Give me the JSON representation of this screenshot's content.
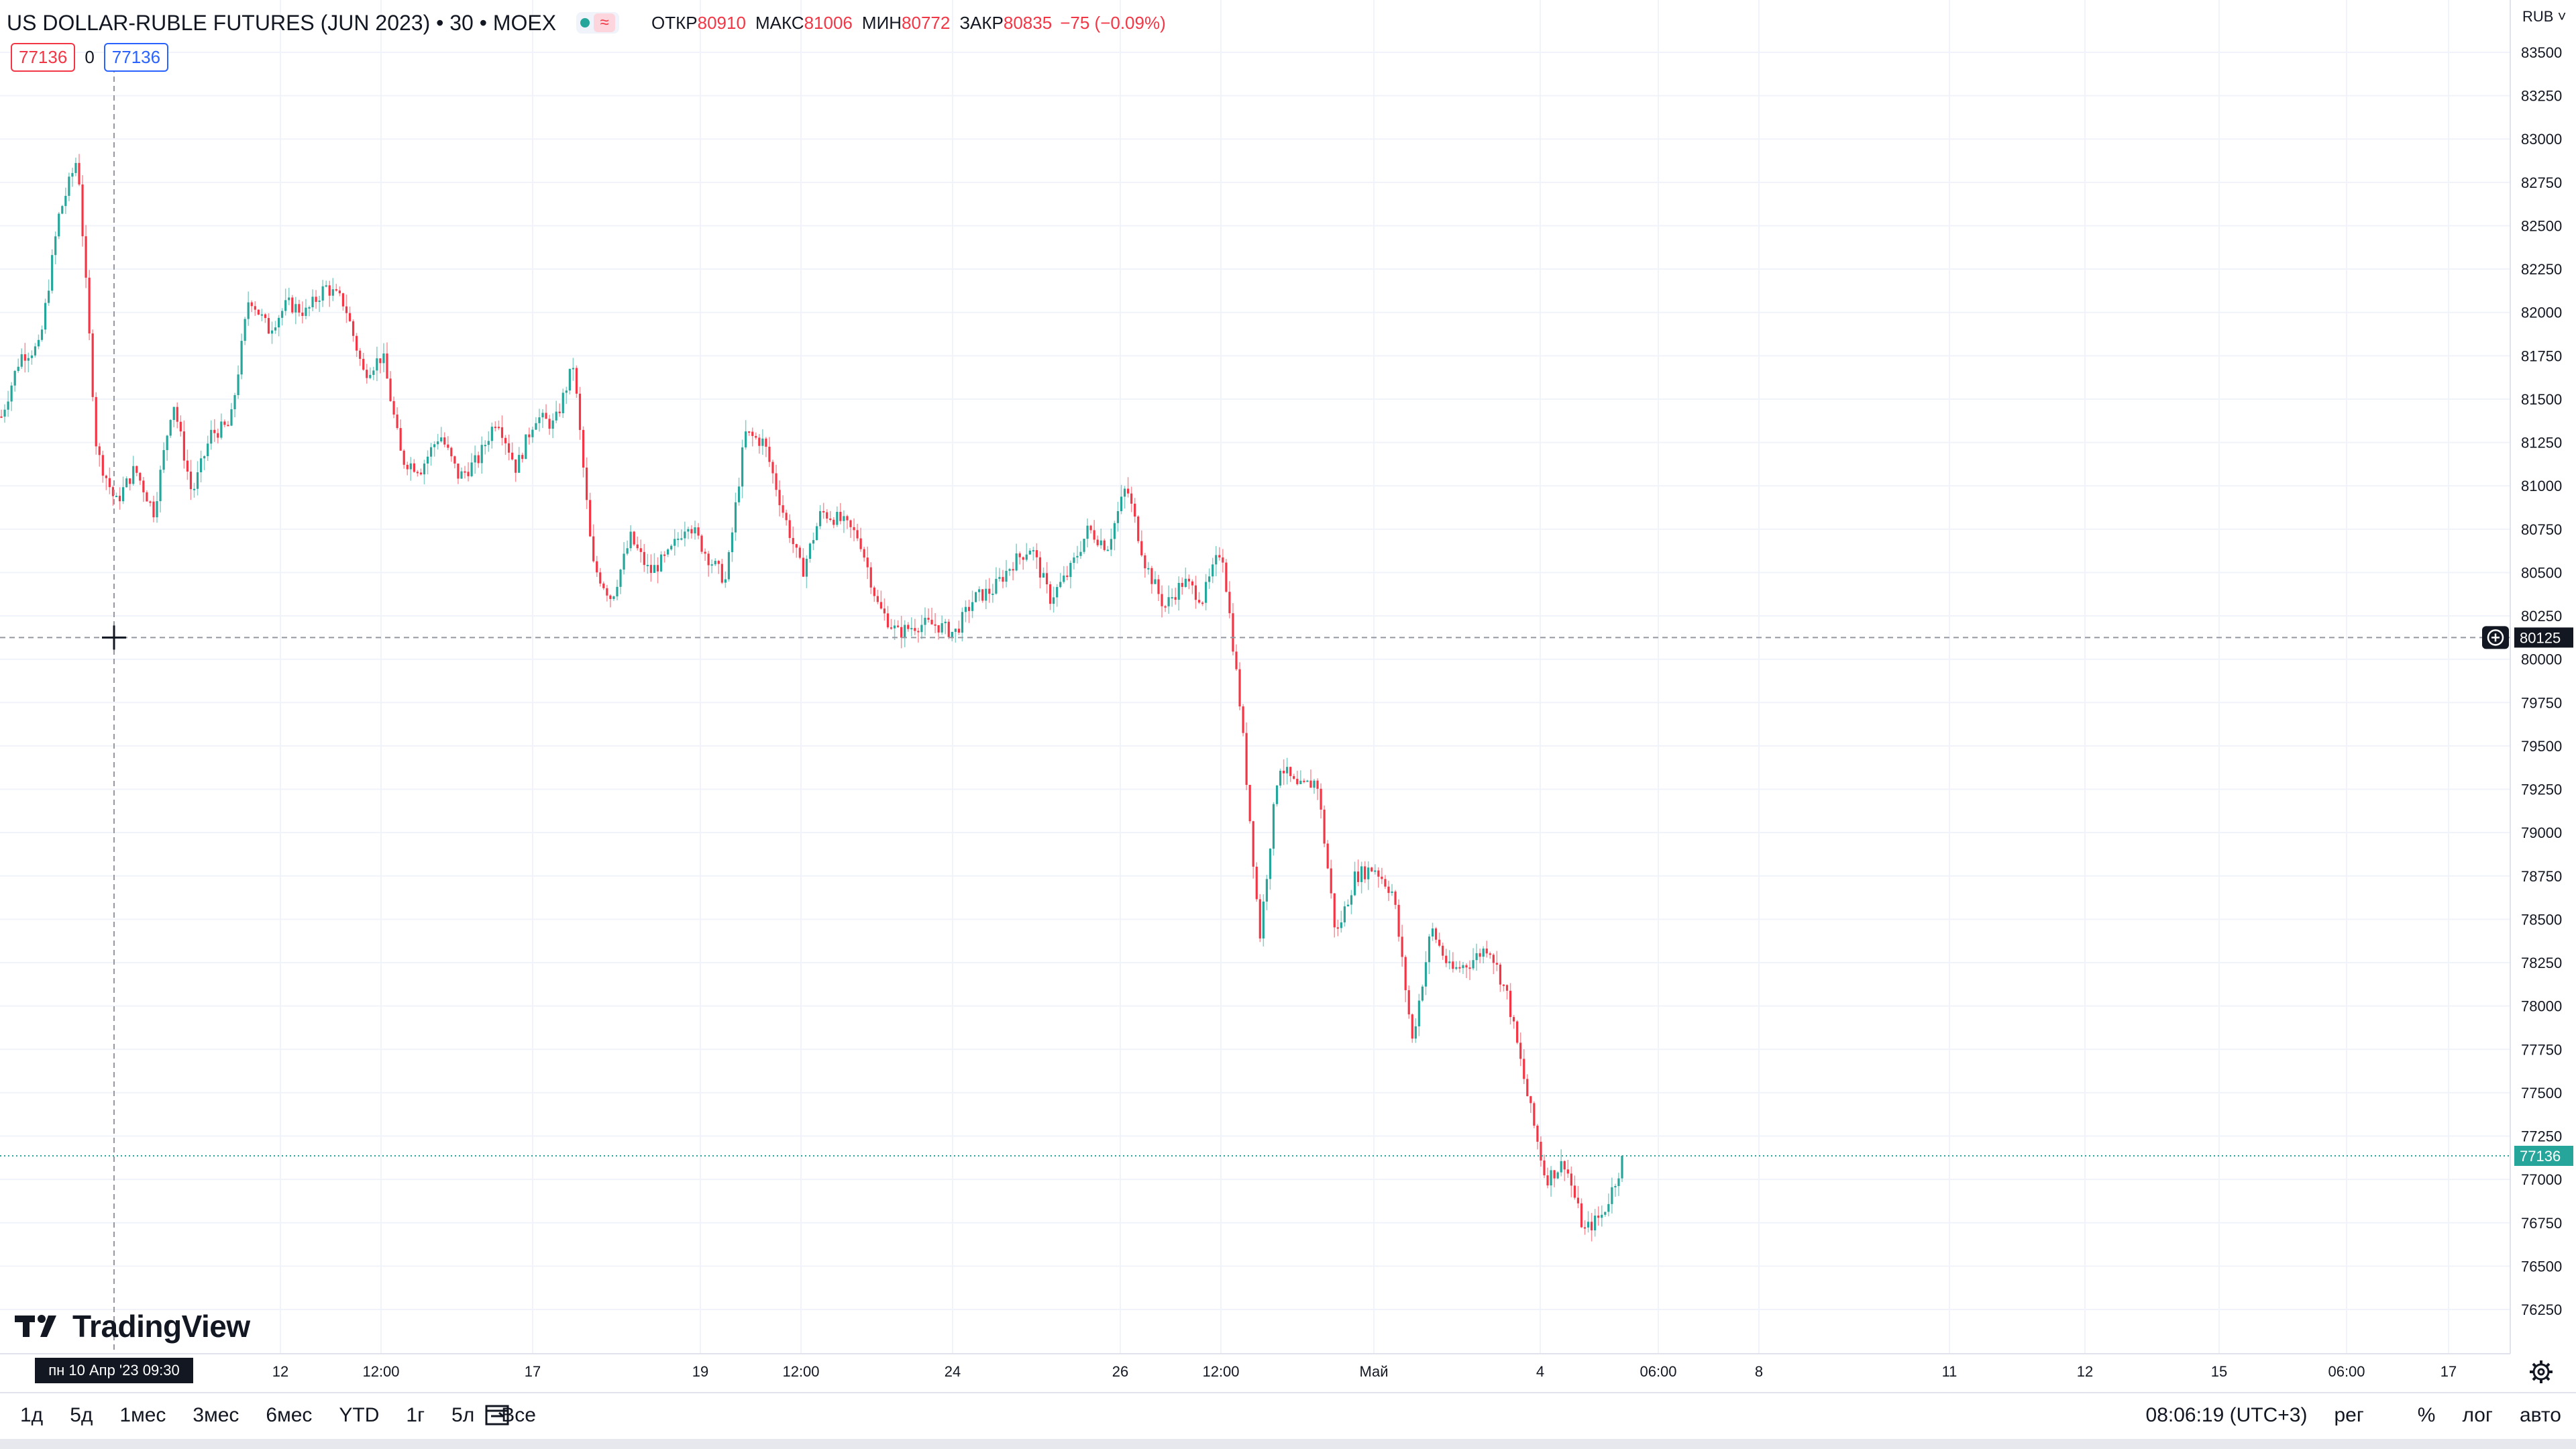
{
  "header": {
    "symbol": "US DOLLAR-RUBLE FUTURES (JUN 2023) • 30 • MOEX",
    "open_label": "ОТКР",
    "open": "80910",
    "high_label": "МАКС",
    "high": "81006",
    "low_label": "МИН",
    "low": "80772",
    "close_label": "ЗАКР",
    "close": "80835",
    "change": "−75 (−0.09%)"
  },
  "inputs": {
    "left": "77136",
    "mid": "0",
    "right": "77136"
  },
  "logo": "TradingView",
  "axis": {
    "currency": "RUB",
    "crosshair_price": "80125",
    "last_price": "77136",
    "crosshair_time": "пн 10 Апр '23   09:30"
  },
  "ranges": [
    "1д",
    "5д",
    "1мес",
    "3мес",
    "6мес",
    "YTD",
    "1г",
    "5л",
    "Все"
  ],
  "status": {
    "time": "08:06:19 (UTC+3)",
    "session": "рег",
    "percent": "%",
    "log": "лог",
    "auto": "авто"
  },
  "colors": {
    "up": "#26a69a",
    "down": "#f23645",
    "grid": "#f0f3fa",
    "text": "#131722"
  },
  "chart_data": {
    "type": "candlestick",
    "title": "US DOLLAR-RUBLE FUTURES (JUN 2023) • 30 • MOEX",
    "ylim": [
      76000,
      83600
    ],
    "y_ticks": [
      76250,
      76500,
      76750,
      77000,
      77250,
      77500,
      77750,
      78000,
      78250,
      78500,
      78750,
      79000,
      79250,
      79500,
      79750,
      80000,
      80250,
      80500,
      80750,
      81000,
      81250,
      81500,
      81750,
      82000,
      82250,
      82500,
      82750,
      83000,
      83250,
      83500
    ],
    "x_labels": [
      "12",
      "12:00",
      "17",
      "19",
      "12:00",
      "24",
      "26",
      "12:00",
      "Май",
      "4",
      "06:00",
      "8",
      "11",
      "12",
      "15",
      "06:00",
      "17"
    ],
    "price_path": [
      81400,
      81750,
      81800,
      82550,
      82900,
      81200,
      80900,
      81100,
      80850,
      81500,
      80950,
      81300,
      81350,
      82100,
      81900,
      82050,
      82000,
      82150,
      82050,
      81650,
      81750,
      81150,
      81100,
      81300,
      81050,
      81150,
      81400,
      81100,
      81400,
      81350,
      81700,
      80550,
      80350,
      80700,
      80500,
      80600,
      80800,
      80600,
      80450,
      81300,
      81250,
      80850,
      80500,
      80850,
      80800,
      80700,
      80300,
      80150,
      80200,
      80200,
      80150,
      80350,
      80400,
      80550,
      80650,
      80350,
      80500,
      80750,
      80650,
      81000,
      80550,
      80300,
      80450,
      80350,
      80650,
      79700,
      78400,
      79400,
      79250,
      79300,
      78400,
      78750,
      78800,
      78650,
      77800,
      78450,
      78200,
      78250,
      78350,
      78050,
      77500,
      77000,
      77100,
      76700,
      76800,
      77100
    ],
    "last": 77136,
    "crosshair_price": 80125
  }
}
